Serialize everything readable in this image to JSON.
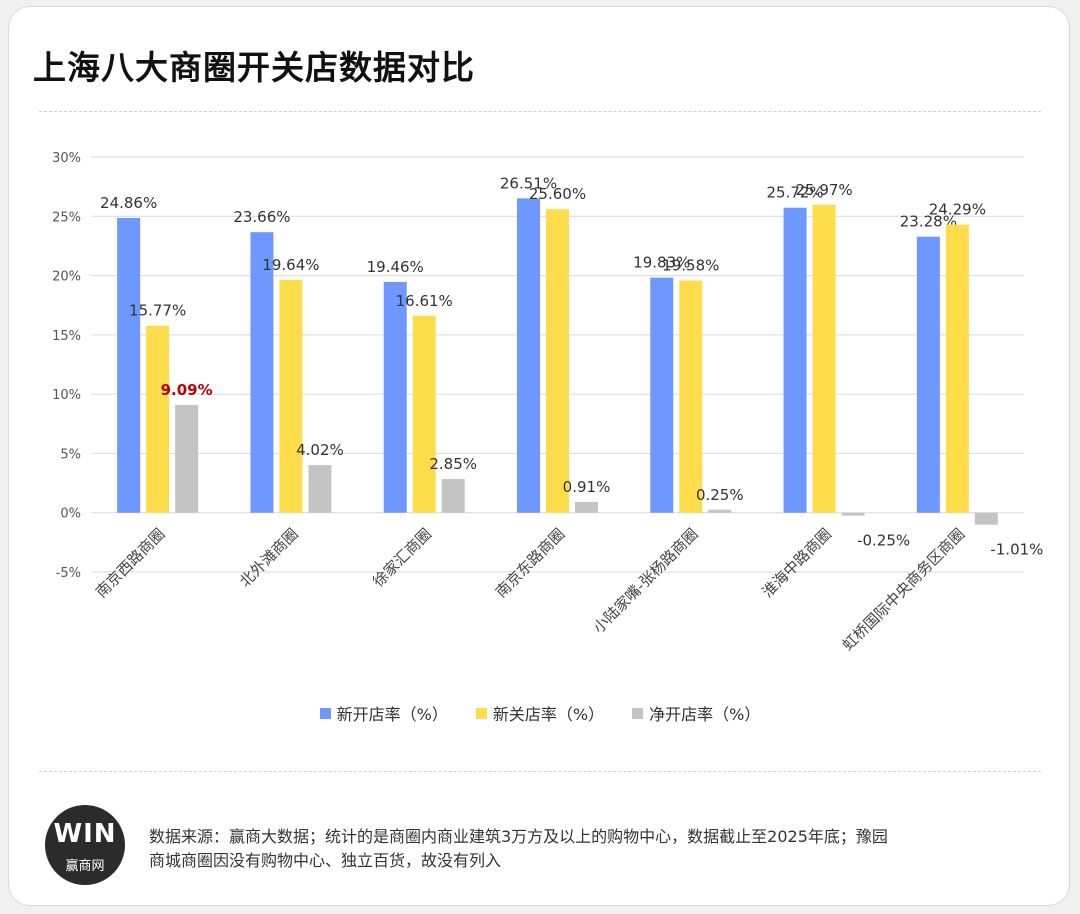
{
  "title": "上海八大商圈开关店数据对比",
  "logo": {
    "mark": "WIN",
    "text": "赢商网"
  },
  "source_note": "数据来源：赢商大数据；统计的是商圈内商业建筑3万方及以上的购物中心，数据截止至2025年底；豫园商城商圈因没有购物中心、独立百货，故没有列入",
  "colors": {
    "new_open": "#6e97ff",
    "new_close": "#ffdc4a",
    "net_open": "#c4c4c4",
    "highlight": "#c00000"
  },
  "chart_data": {
    "type": "bar",
    "title": "上海八大商圈开关店数据对比",
    "categories": [
      "南京西路商圈",
      "北外滩商圈",
      "徐家汇商圈",
      "南京东路商圈",
      "小陆家嘴-张杨路商圈",
      "淮海中路商圈",
      "虹桥国际中央商务区商圈"
    ],
    "series": [
      {
        "name": "新开店率（%）",
        "values": [
          24.86,
          23.66,
          19.46,
          26.51,
          19.83,
          25.72,
          23.28
        ],
        "labels": [
          "24.86%",
          "23.66%",
          "19.46%",
          "26.51%",
          "19.83%",
          "25.72%",
          "23.28%"
        ]
      },
      {
        "name": "新关店率（%）",
        "values": [
          15.77,
          19.64,
          16.61,
          25.6,
          19.58,
          25.97,
          24.29
        ],
        "labels": [
          "15.77%",
          "19.64%",
          "16.61%",
          "25.60%",
          "19.58%",
          "25.97%",
          "24.29%"
        ]
      },
      {
        "name": "净开店率（%）",
        "values": [
          9.09,
          4.02,
          2.85,
          0.91,
          0.25,
          -0.25,
          -1.01
        ],
        "labels": [
          "9.09%",
          "4.02%",
          "2.85%",
          "0.91%",
          "0.25%",
          "-0.25%",
          "-1.01%"
        ]
      }
    ],
    "highlight": {
      "series": 2,
      "index": 0
    },
    "ylim": [
      -5,
      30
    ],
    "yticks": [
      -5,
      0,
      5,
      10,
      15,
      20,
      25,
      30
    ],
    "ytick_labels": [
      "-5%",
      "0%",
      "5%",
      "10%",
      "15%",
      "20%",
      "25%",
      "30%"
    ],
    "grid": true,
    "legend": "bottom"
  }
}
